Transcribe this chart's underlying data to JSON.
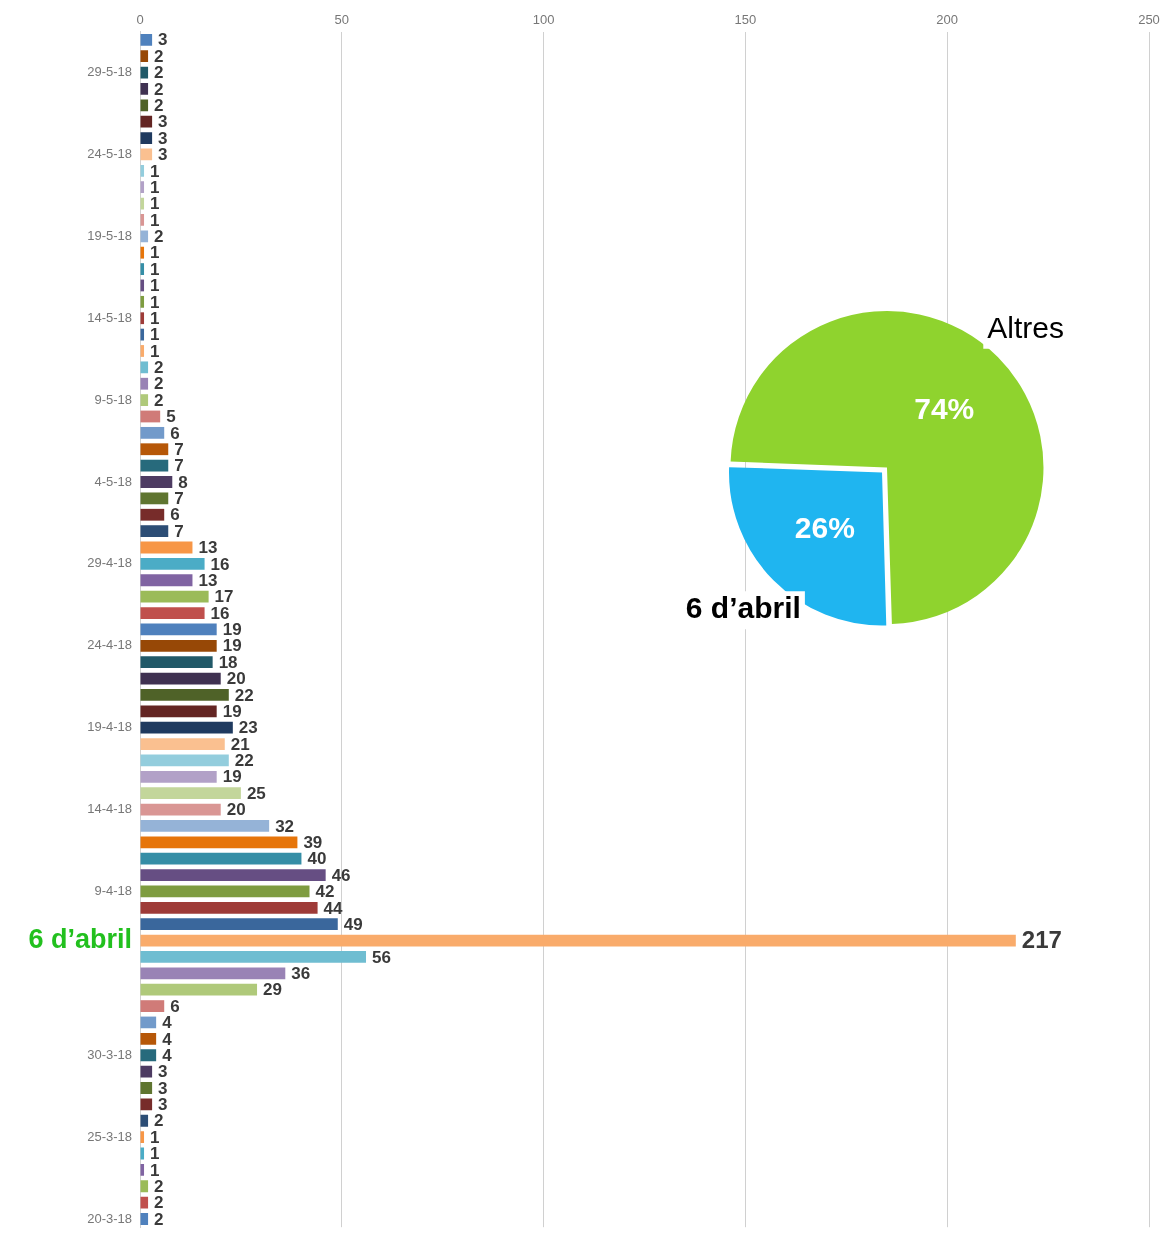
{
  "chart_data": [
    {
      "type": "bar",
      "orientation": "horizontal",
      "categories": [
        null,
        null,
        "29-5-18",
        null,
        null,
        null,
        null,
        "24-5-18",
        null,
        null,
        null,
        null,
        "19-5-18",
        null,
        null,
        null,
        null,
        "14-5-18",
        null,
        null,
        null,
        null,
        "9-5-18",
        null,
        null,
        null,
        null,
        "4-5-18",
        null,
        null,
        null,
        null,
        "29-4-18",
        null,
        null,
        null,
        null,
        "24-4-18",
        null,
        null,
        null,
        null,
        "19-4-18",
        null,
        null,
        null,
        null,
        "14-4-18",
        null,
        null,
        null,
        null,
        "9-4-18",
        null,
        null,
        "6 d’abril",
        null,
        null,
        null,
        null,
        null,
        null,
        "30-3-18",
        null,
        null,
        null,
        null,
        "25-3-18",
        null,
        null,
        null,
        null,
        "20-3-18"
      ],
      "values": [
        3,
        2,
        2,
        2,
        2,
        3,
        3,
        3,
        1,
        1,
        1,
        1,
        2,
        1,
        1,
        1,
        1,
        1,
        1,
        1,
        2,
        2,
        2,
        5,
        6,
        7,
        7,
        8,
        7,
        6,
        7,
        13,
        16,
        13,
        17,
        16,
        19,
        19,
        18,
        20,
        22,
        19,
        23,
        21,
        22,
        19,
        25,
        20,
        32,
        39,
        40,
        46,
        42,
        44,
        49,
        217,
        56,
        36,
        29,
        6,
        4,
        4,
        4,
        3,
        3,
        3,
        2,
        1,
        1,
        1,
        2,
        2,
        2
      ],
      "colors": [
        "#4f81bd",
        "#974806",
        "#215968",
        "#3f3151",
        "#4f6228",
        "#632523",
        "#1f3a5f",
        "#fac090",
        "#93cddd",
        "#b2a1c7",
        "#c3d69b",
        "#d99694",
        "#95b3d7",
        "#e6750a",
        "#358ea6",
        "#664e83",
        "#7e9c40",
        "#9e3b38",
        "#3a679c",
        "#f9ab6b",
        "#6fbdd1",
        "#9983b5",
        "#afc97a",
        "#d07b78",
        "#729aca",
        "#b65708",
        "#276a7c",
        "#4d3b62",
        "#5f7530",
        "#772c2a",
        "#2c4d75",
        "#f79646",
        "#4bacc6",
        "#8064a2",
        "#9bbb59",
        "#c0504d",
        "#4f81bd",
        "#974806",
        "#215968",
        "#3f3151",
        "#4f6228",
        "#632523",
        "#1f3a5f",
        "#fac090",
        "#93cddd",
        "#b2a1c7",
        "#c3d69b",
        "#d99694",
        "#95b3d7",
        "#e6750a",
        "#358ea6",
        "#664e83",
        "#7e9c40",
        "#9e3b38",
        "#3a679c",
        "#f9ab6b",
        "#6fbdd1",
        "#9983b5",
        "#afc97a",
        "#d07b78",
        "#729aca",
        "#b65708",
        "#276a7c",
        "#4d3b62",
        "#5f7530",
        "#772c2a",
        "#2c4d75",
        "#f79646",
        "#4bacc6",
        "#8064a2",
        "#9bbb59",
        "#c0504d",
        "#4f81bd"
      ],
      "xlim": [
        0,
        250
      ],
      "xticks": [
        0,
        50,
        100,
        150,
        200,
        250
      ],
      "grid": "x",
      "data_labels": true
    },
    {
      "type": "pie",
      "categories": [
        "Altres",
        "6 d’abril"
      ],
      "values": [
        74,
        26
      ],
      "colors": [
        "#8fd32e",
        "#1fb5f0"
      ],
      "value_labels": [
        "74%",
        "26%"
      ]
    }
  ]
}
